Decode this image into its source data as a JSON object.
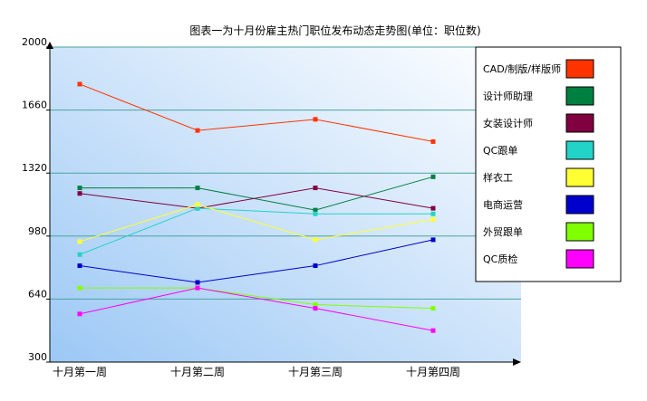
{
  "chart_data": {
    "type": "line",
    "title": "图表一为十月份雇主热门职位发布动态走势图(单位：职位数)",
    "categories": [
      "十月第一周",
      "十月第二周",
      "十月第三周",
      "十月第四周"
    ],
    "yticks": [
      300,
      640,
      980,
      1320,
      1660,
      2000
    ],
    "ylim": [
      300,
      2000
    ],
    "grid": "horizontal",
    "legend_position": "right",
    "series": [
      {
        "name": "CAD/制版/样版师",
        "color": "#ff3300",
        "values": [
          1800,
          1550,
          1610,
          1490
        ]
      },
      {
        "name": "设计师助理",
        "color": "#008040",
        "values": [
          1240,
          1240,
          1120,
          1300
        ]
      },
      {
        "name": "女装设计师",
        "color": "#800040",
        "values": [
          1210,
          1130,
          1240,
          1130
        ]
      },
      {
        "name": "QC跟单",
        "color": "#22d3c8",
        "values": [
          880,
          1130,
          1100,
          1100
        ]
      },
      {
        "name": "样衣工",
        "color": "#ffff33",
        "values": [
          950,
          1150,
          960,
          1070
        ]
      },
      {
        "name": "电商运营",
        "color": "#0000cc",
        "values": [
          820,
          730,
          820,
          960
        ]
      },
      {
        "name": "外贸跟单",
        "color": "#80ff00",
        "values": [
          700,
          700,
          610,
          590
        ]
      },
      {
        "name": "QC质检",
        "color": "#ff00ff",
        "values": [
          560,
          700,
          590,
          470
        ]
      }
    ]
  }
}
